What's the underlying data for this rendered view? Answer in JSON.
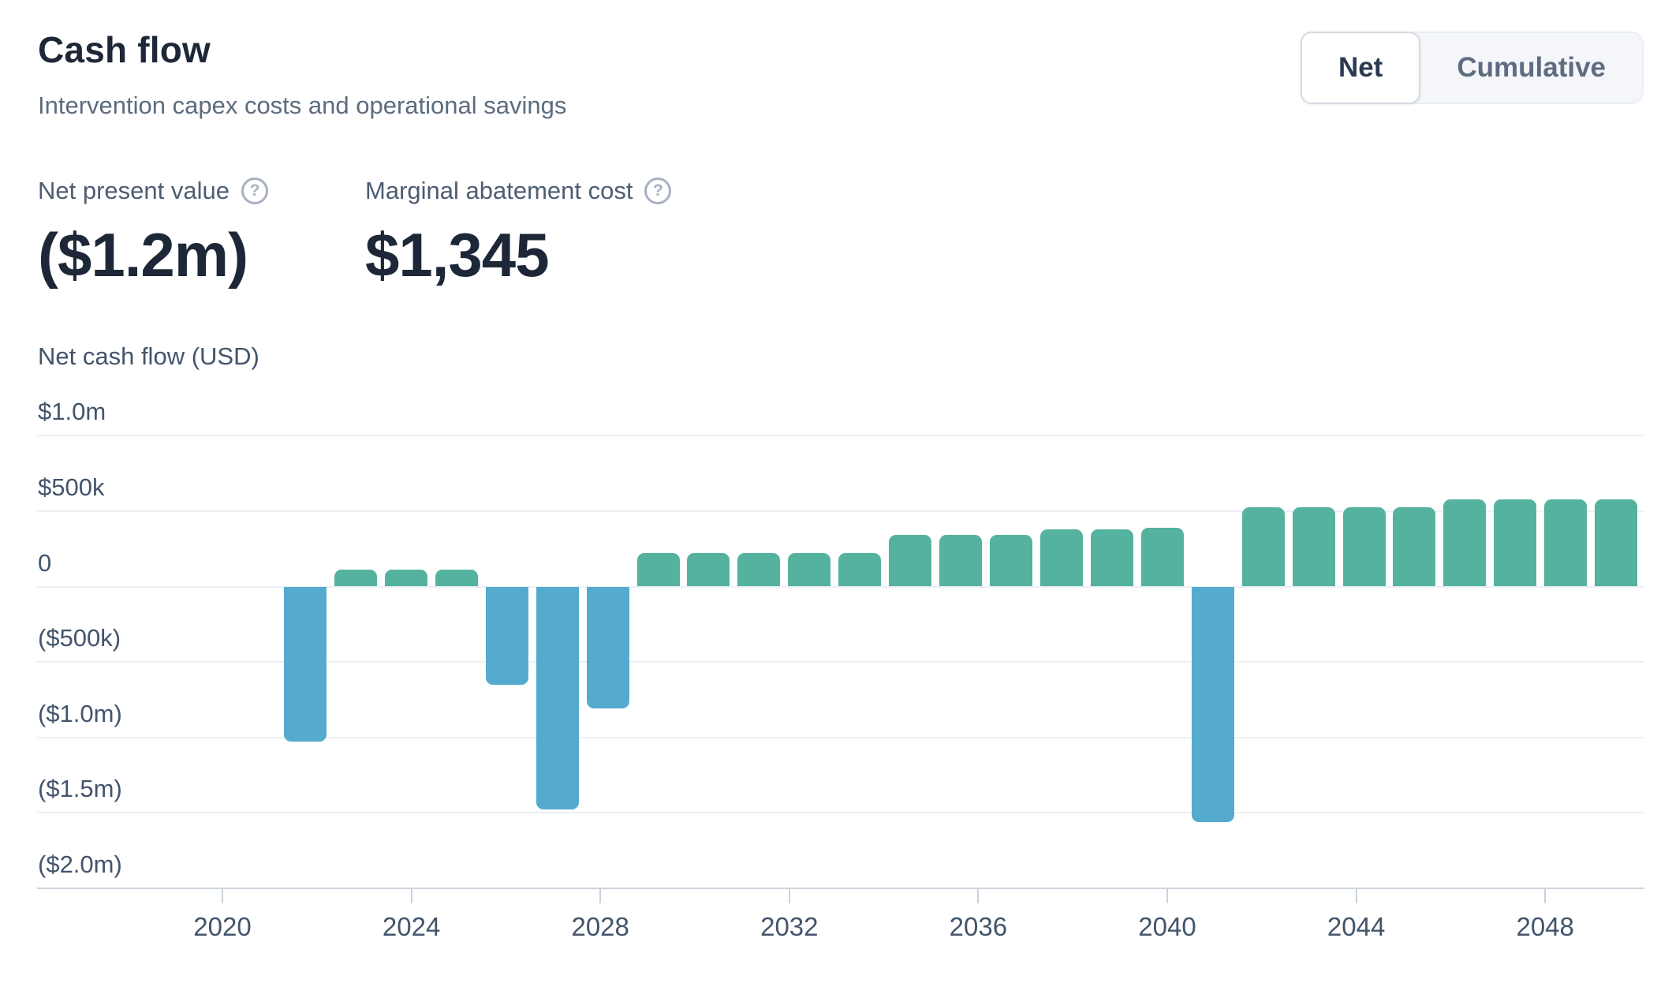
{
  "header": {
    "title": "Cash flow",
    "subtitle": "Intervention capex costs and operational savings",
    "toggle": {
      "net": "Net",
      "cumulative": "Cumulative"
    }
  },
  "stats": {
    "npv": {
      "label": "Net present value",
      "value": "($1.2m)"
    },
    "mac": {
      "label": "Marginal abatement cost",
      "value": "$1,345"
    }
  },
  "icons": {
    "npv_help": "?",
    "mac_help": "?"
  },
  "chart_data": {
    "type": "bar",
    "title": "Net cash flow (USD)",
    "x_label_years": [
      2020,
      2024,
      2028,
      2032,
      2036,
      2040,
      2044,
      2048
    ],
    "y_ticks": [
      {
        "label": "$1.0m",
        "value": 1000000
      },
      {
        "label": "$500k",
        "value": 500000
      },
      {
        "label": "0",
        "value": 0
      },
      {
        "label": "($500k)",
        "value": -500000
      },
      {
        "label": "($1.0m)",
        "value": -1000000
      },
      {
        "label": "($1.5m)",
        "value": -1500000
      },
      {
        "label": "($2.0m)",
        "value": -2000000
      }
    ],
    "ylim": [
      -2000000,
      1000000
    ],
    "grid": true,
    "legend": "none",
    "series_name": "Net cash flow",
    "categories": [
      2022,
      2023,
      2024,
      2025,
      2026,
      2027,
      2028,
      2029,
      2030,
      2031,
      2032,
      2033,
      2034,
      2035,
      2036,
      2037,
      2038,
      2039,
      2040,
      2041,
      2042,
      2043,
      2044,
      2045,
      2046,
      2047,
      2048
    ],
    "values": [
      -1030000,
      115000,
      115000,
      115000,
      -650000,
      -1480000,
      -810000,
      220000,
      220000,
      220000,
      220000,
      220000,
      340000,
      340000,
      340000,
      380000,
      380000,
      390000,
      -1560000,
      525000,
      525000,
      525000,
      525000,
      580000,
      580000,
      580000,
      580000
    ],
    "colors": {
      "positive": "#55b29e",
      "negative": "#55abce"
    }
  }
}
